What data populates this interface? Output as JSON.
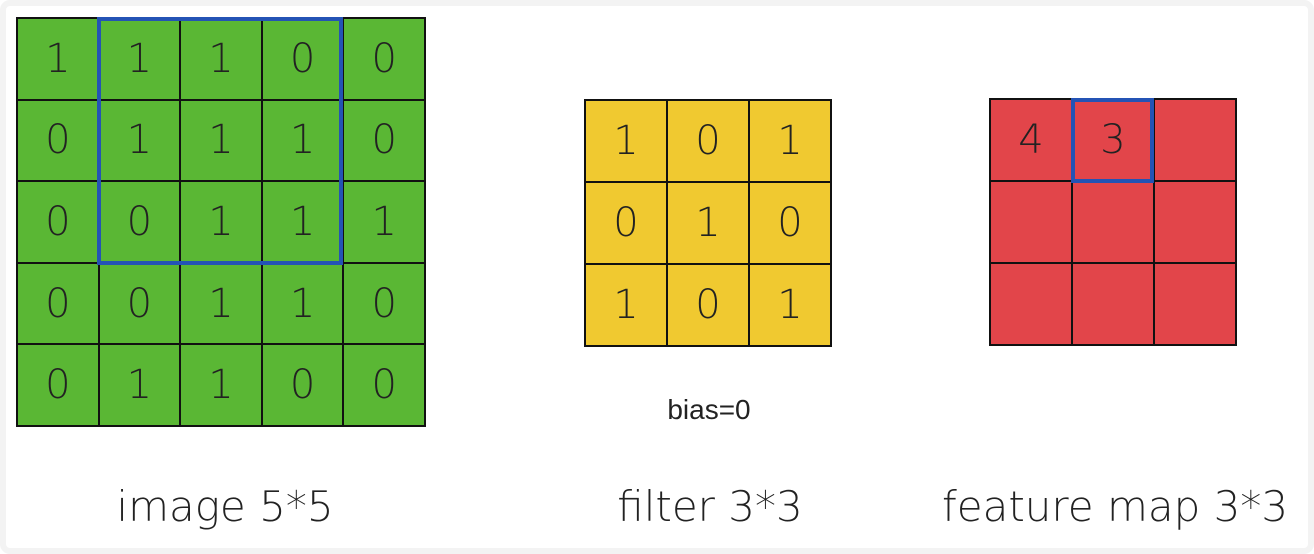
{
  "colors": {
    "image": "#5ab734",
    "filter": "#f0c930",
    "feature": "#e2454a",
    "highlight": "#2453b5",
    "grid_line": "#111111"
  },
  "image": {
    "caption": "image 5*5",
    "cells": [
      [
        "1",
        "1",
        "1",
        "0",
        "0"
      ],
      [
        "0",
        "1",
        "1",
        "1",
        "0"
      ],
      [
        "0",
        "0",
        "1",
        "1",
        "1"
      ],
      [
        "0",
        "0",
        "1",
        "1",
        "0"
      ],
      [
        "0",
        "1",
        "1",
        "0",
        "0"
      ]
    ],
    "highlighted_window": {
      "rows": [
        0,
        2
      ],
      "cols": [
        1,
        3
      ]
    }
  },
  "filter": {
    "caption": "filter 3*3",
    "cells": [
      [
        "1",
        "0",
        "1"
      ],
      [
        "0",
        "1",
        "0"
      ],
      [
        "1",
        "0",
        "1"
      ]
    ],
    "bias_label": "bias=0"
  },
  "feature_map": {
    "caption": "feature map 3*3",
    "cells": [
      [
        "4",
        "3",
        ""
      ],
      [
        "",
        "",
        ""
      ],
      [
        "",
        "",
        ""
      ]
    ],
    "highlighted_cell": {
      "row": 0,
      "col": 1
    }
  }
}
